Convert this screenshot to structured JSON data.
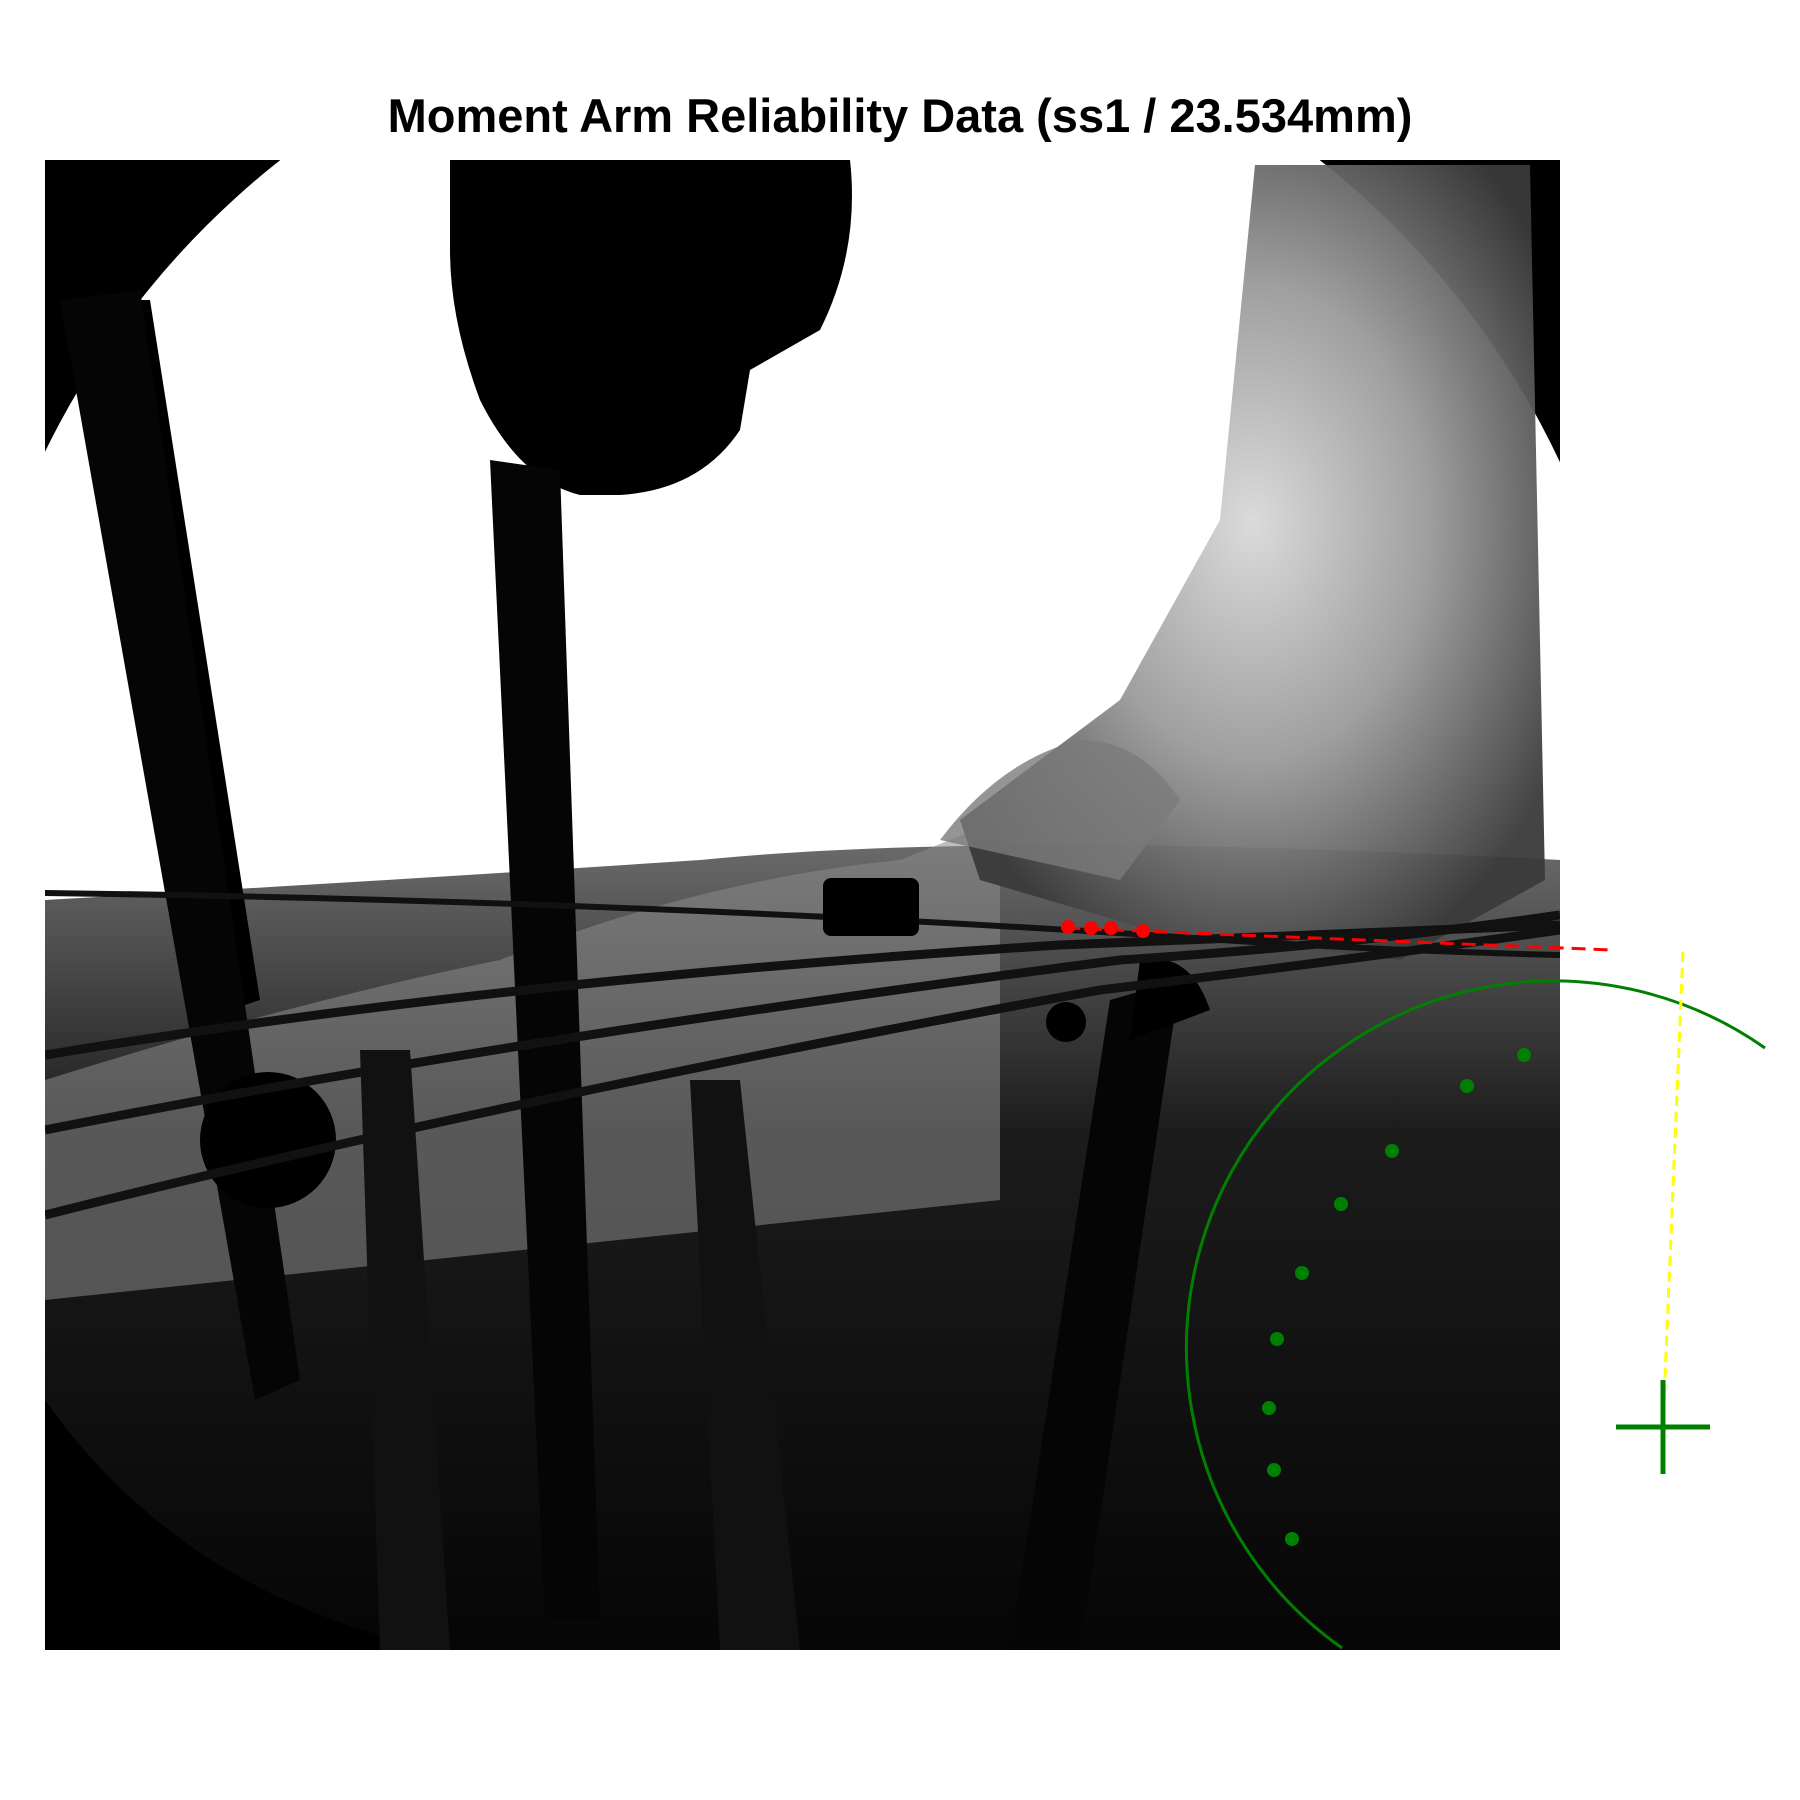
{
  "title": "Moment Arm Reliability Data (ss1 / 23.534mm)",
  "colors": {
    "tendon_points": "#ff0000",
    "tendon_line": "#ff0000",
    "circle_fit": "#008000",
    "center_marker": "#008000",
    "moment_arm_line": "#ffff00"
  },
  "icons": {
    "center_marker": "crosshair-plus-icon"
  }
}
